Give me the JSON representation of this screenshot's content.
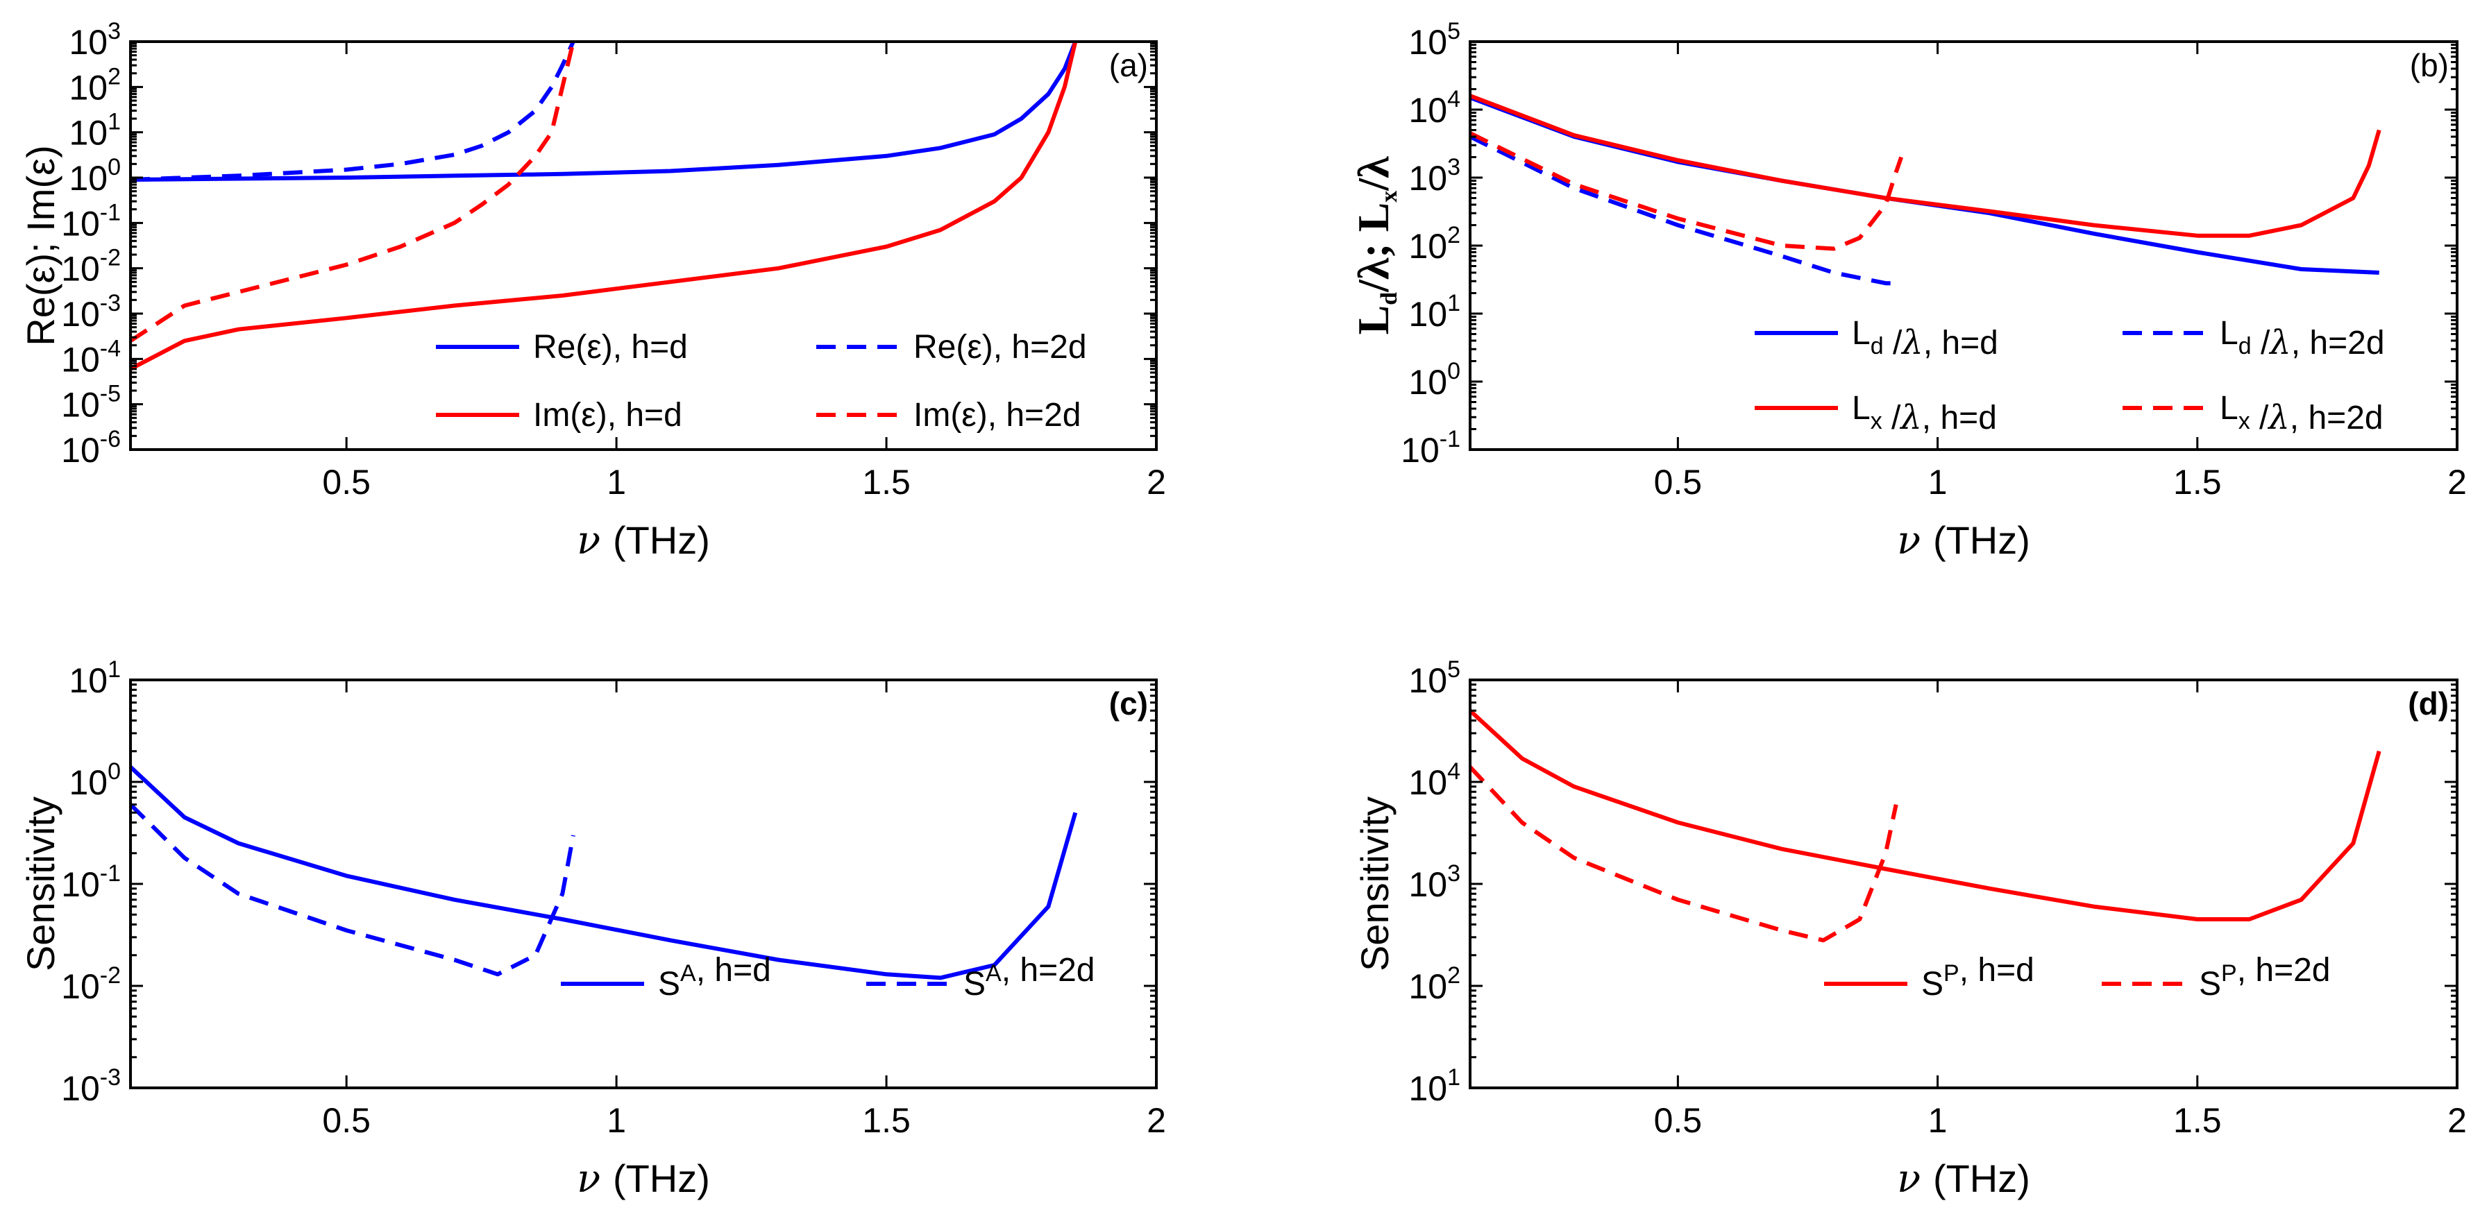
{
  "chart_data": [
    {
      "id": "a",
      "type": "line",
      "panel_label": "(a)",
      "tag_bold": false,
      "yscale": "log",
      "xlim": [
        0.1,
        2.0
      ],
      "ylim_exp": [
        -6,
        3
      ],
      "xticks": [
        0.5,
        1,
        1.5,
        2
      ],
      "xtick_labels": [
        "0.5",
        "1",
        "1.5",
        "2"
      ],
      "yticks_exp": [
        -6,
        -5,
        -4,
        -3,
        -2,
        -1,
        0,
        1,
        2,
        3
      ],
      "xlabel_symbol": "ν",
      "xlabel_unit": "(THz)",
      "ylabel": "Re(ε); Im(ε)",
      "legend_position": "lower-right",
      "series": [
        {
          "name": "Re(ε), h=d",
          "color": "#0000ff",
          "dash": false,
          "x": [
            0.1,
            0.3,
            0.5,
            0.7,
            0.9,
            1.1,
            1.3,
            1.5,
            1.6,
            1.7,
            1.75,
            1.8,
            1.83,
            1.85
          ],
          "y": [
            0.9,
            0.95,
            1.0,
            1.1,
            1.2,
            1.4,
            1.9,
            3.0,
            4.5,
            9,
            20,
            70,
            250,
            1000
          ]
        },
        {
          "name": "Re(ε), h=2d",
          "color": "#0000ff",
          "dash": true,
          "x": [
            0.1,
            0.3,
            0.5,
            0.6,
            0.7,
            0.75,
            0.8,
            0.85,
            0.88,
            0.9,
            0.92
          ],
          "y": [
            0.9,
            1.1,
            1.5,
            2.0,
            3.2,
            5,
            10,
            30,
            100,
            300,
            1000
          ]
        },
        {
          "name": "Im(ε), h=d",
          "color": "#ff0000",
          "dash": false,
          "x": [
            0.1,
            0.2,
            0.3,
            0.5,
            0.7,
            0.9,
            1.1,
            1.3,
            1.5,
            1.6,
            1.7,
            1.75,
            1.8,
            1.83,
            1.85
          ],
          "y": [
            6e-05,
            0.00025,
            0.00045,
            0.0008,
            0.0015,
            0.0025,
            0.005,
            0.01,
            0.03,
            0.07,
            0.3,
            1,
            10,
            100,
            1000
          ]
        },
        {
          "name": "Im(ε), h=2d",
          "color": "#ff0000",
          "dash": true,
          "x": [
            0.1,
            0.2,
            0.3,
            0.4,
            0.5,
            0.6,
            0.7,
            0.75,
            0.8,
            0.85,
            0.88,
            0.9,
            0.92
          ],
          "y": [
            0.00025,
            0.0015,
            0.003,
            0.006,
            0.012,
            0.03,
            0.1,
            0.25,
            0.7,
            3,
            10,
            100,
            1000
          ]
        }
      ]
    },
    {
      "id": "b",
      "type": "line",
      "panel_label": "(b)",
      "tag_bold": false,
      "yscale": "log",
      "xlim": [
        0.1,
        2.0
      ],
      "ylim_exp": [
        -1,
        5
      ],
      "xticks": [
        0.5,
        1,
        1.5,
        2
      ],
      "xtick_labels": [
        "0.5",
        "1",
        "1.5",
        "2"
      ],
      "yticks_exp": [
        -1,
        0,
        1,
        2,
        3,
        4,
        5
      ],
      "xlabel_symbol": "ν",
      "xlabel_unit": "(THz)",
      "ylabel": "Ld/λ; Lx/λ",
      "legend_position": "lower-right",
      "series": [
        {
          "name": "Ld /λ, h=d",
          "color": "#0000ff",
          "dash": false,
          "x": [
            0.1,
            0.3,
            0.5,
            0.7,
            0.9,
            1.1,
            1.3,
            1.5,
            1.7,
            1.85
          ],
          "y": [
            15000,
            4000,
            1700,
            900,
            500,
            300,
            150,
            80,
            45,
            40
          ]
        },
        {
          "name": "Ld /λ, h=2d",
          "color": "#0000ff",
          "dash": true,
          "x": [
            0.1,
            0.3,
            0.5,
            0.7,
            0.8,
            0.9,
            0.93
          ],
          "y": [
            4000,
            700,
            200,
            70,
            40,
            28,
            28
          ]
        },
        {
          "name": "Lx /λ, h=d",
          "color": "#ff0000",
          "dash": false,
          "x": [
            0.1,
            0.3,
            0.5,
            0.7,
            0.9,
            1.1,
            1.3,
            1.5,
            1.6,
            1.7,
            1.8,
            1.83,
            1.85
          ],
          "y": [
            16000,
            4200,
            1800,
            900,
            500,
            320,
            200,
            140,
            140,
            200,
            500,
            1500,
            5000
          ]
        },
        {
          "name": "Lx /λ, h=2d",
          "color": "#ff0000",
          "dash": true,
          "x": [
            0.1,
            0.3,
            0.5,
            0.7,
            0.8,
            0.85,
            0.9,
            0.92,
            0.93
          ],
          "y": [
            4500,
            800,
            250,
            100,
            90,
            130,
            400,
            1200,
            2000
          ]
        }
      ]
    },
    {
      "id": "c",
      "type": "line",
      "panel_label": "(c)",
      "tag_bold": true,
      "yscale": "log",
      "xlim": [
        0.1,
        2.0
      ],
      "ylim_exp": [
        -3,
        1
      ],
      "xticks": [
        0.5,
        1,
        1.5,
        2
      ],
      "xtick_labels": [
        "0.5",
        "1",
        "1.5",
        "2"
      ],
      "yticks_exp": [
        -3,
        -2,
        -1,
        0,
        1
      ],
      "xlabel_symbol": "ν",
      "xlabel_unit": "(THz)",
      "ylabel": "Sensitivity",
      "legend_position": "lower-right",
      "series": [
        {
          "name": "SA, h=d",
          "color": "#0000ff",
          "dash": false,
          "x": [
            0.1,
            0.2,
            0.3,
            0.5,
            0.7,
            0.9,
            1.1,
            1.3,
            1.5,
            1.6,
            1.7,
            1.8,
            1.85
          ],
          "y": [
            1.4,
            0.45,
            0.25,
            0.12,
            0.07,
            0.045,
            0.028,
            0.018,
            0.013,
            0.012,
            0.016,
            0.06,
            0.5
          ]
        },
        {
          "name": "SA, h=2d",
          "color": "#0000ff",
          "dash": true,
          "x": [
            0.1,
            0.2,
            0.3,
            0.5,
            0.7,
            0.78,
            0.85,
            0.9,
            0.92
          ],
          "y": [
            0.6,
            0.18,
            0.08,
            0.035,
            0.018,
            0.013,
            0.02,
            0.08,
            0.3
          ]
        }
      ]
    },
    {
      "id": "d",
      "type": "line",
      "panel_label": "(d)",
      "tag_bold": true,
      "yscale": "log",
      "xlim": [
        0.1,
        2.0
      ],
      "ylim_exp": [
        1,
        5
      ],
      "xticks": [
        0.5,
        1,
        1.5,
        2
      ],
      "xtick_labels": [
        "0.5",
        "1",
        "1.5",
        "2"
      ],
      "yticks_exp": [
        1,
        2,
        3,
        4,
        5
      ],
      "xlabel_symbol": "ν",
      "xlabel_unit": "(THz)",
      "ylabel": "Sensitivity",
      "legend_position": "lower-right",
      "series": [
        {
          "name": "SP, h=d",
          "color": "#ff0000",
          "dash": false,
          "x": [
            0.1,
            0.2,
            0.3,
            0.5,
            0.7,
            0.9,
            1.1,
            1.3,
            1.5,
            1.6,
            1.7,
            1.8,
            1.85
          ],
          "y": [
            50000,
            17000,
            9000,
            4000,
            2200,
            1400,
            900,
            600,
            450,
            450,
            700,
            2500,
            20000
          ]
        },
        {
          "name": "SP, h=2d",
          "color": "#ff0000",
          "dash": true,
          "x": [
            0.1,
            0.2,
            0.3,
            0.5,
            0.7,
            0.78,
            0.85,
            0.9,
            0.92
          ],
          "y": [
            14000,
            4000,
            1800,
            700,
            350,
            280,
            450,
            2000,
            6000
          ]
        }
      ]
    }
  ]
}
